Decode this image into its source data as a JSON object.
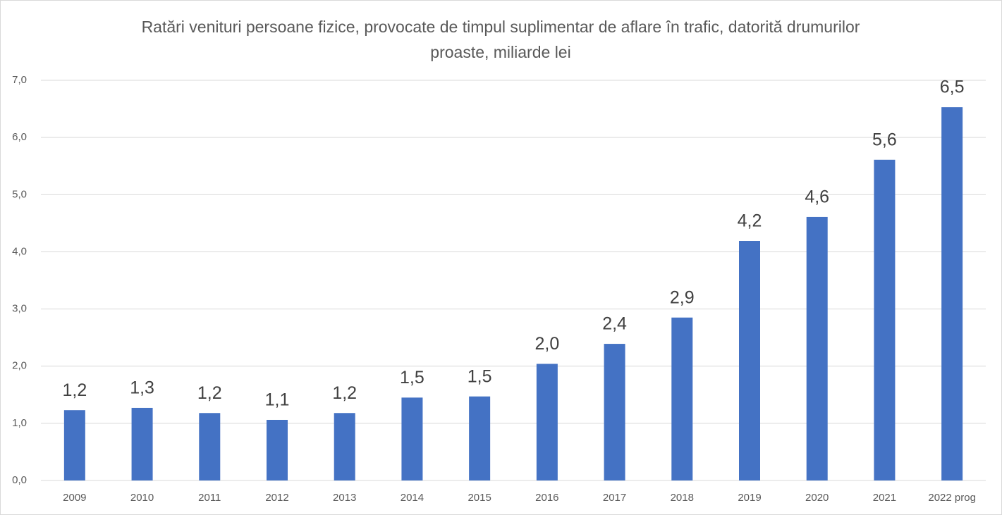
{
  "chart_data": {
    "type": "bar",
    "title": "Ratări venituri persoane fizice, provocate de timpul suplimentar de aflare în trafic, datorită drumurilor proaste, miliarde lei",
    "categories": [
      "2009",
      "2010",
      "2011",
      "2012",
      "2013",
      "2014",
      "2015",
      "2016",
      "2017",
      "2018",
      "2019",
      "2020",
      "2021",
      "2022 prog"
    ],
    "values": [
      1.23,
      1.27,
      1.18,
      1.06,
      1.18,
      1.45,
      1.47,
      2.04,
      2.39,
      2.85,
      4.19,
      4.61,
      5.61,
      6.53
    ],
    "value_labels": [
      "1,2",
      "1,3",
      "1,2",
      "1,1",
      "1,2",
      "1,5",
      "1,5",
      "2,0",
      "2,4",
      "2,9",
      "4,2",
      "4,6",
      "5,6",
      "6,5"
    ],
    "color": "#4472c4",
    "ylim": [
      0,
      7
    ],
    "yticks": [
      {
        "value": 0,
        "label": "0,0"
      },
      {
        "value": 1,
        "label": "1,0"
      },
      {
        "value": 2,
        "label": "2,0"
      },
      {
        "value": 3,
        "label": "3,0"
      },
      {
        "value": 4,
        "label": "4,0"
      },
      {
        "value": 5,
        "label": "5,0"
      },
      {
        "value": 6,
        "label": "6,0"
      },
      {
        "value": 7,
        "label": "7,0"
      }
    ],
    "grid": true
  }
}
